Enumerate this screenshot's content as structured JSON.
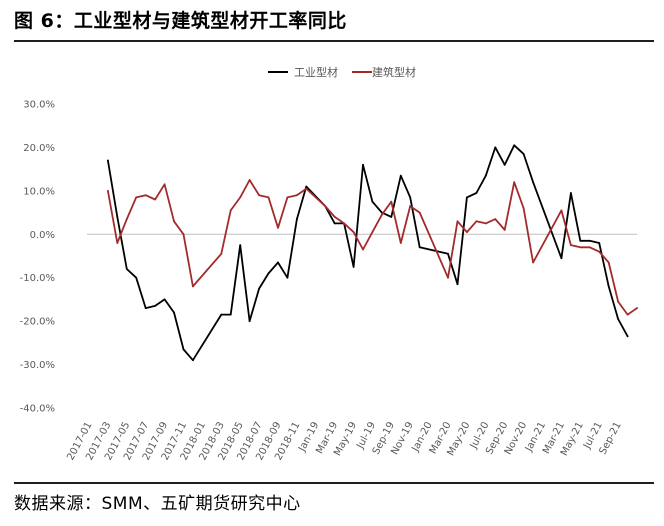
{
  "figure": {
    "title": "图 6：工业型材与建筑型材开工率同比",
    "source": "数据来源：SMM、五矿期货研究中心"
  },
  "colors": {
    "series_black": "#000000",
    "series_red": "#a32b2b",
    "zero_line": "#bfbfbf",
    "tick_text": "#595959",
    "rule": "#1f1f1f"
  },
  "chart_data": {
    "type": "line",
    "title": "",
    "xlabel": "",
    "ylabel": "",
    "ylim": [
      -40,
      30
    ],
    "y_ticks": [
      30,
      20,
      10,
      0,
      -10,
      -20,
      -30,
      -40
    ],
    "y_tick_labels": [
      "30.0%",
      "20.0%",
      "10.0%",
      "0.0%",
      "-10.0%",
      "-20.0%",
      "-30.0%",
      "-40.0%"
    ],
    "grid": false,
    "legend_position": "top-center",
    "x_tick_labels": [
      "2017-01",
      "2017-03",
      "2017-05",
      "2017-07",
      "2017-09",
      "2017-11",
      "2018-01",
      "2018-03",
      "2018-05",
      "2018-07",
      "2018-09",
      "2018-11",
      "Jan-19",
      "Mar-19",
      "May-19",
      "Jul-19",
      "Sep-19",
      "Nov-19",
      "Jan-20",
      "Mar-20",
      "May-20",
      "Jul-20",
      "Sep-20",
      "Nov-20",
      "Jan-21",
      "Mar-21",
      "May-21",
      "Jul-21",
      "Sep-21"
    ],
    "series": [
      {
        "name": "工业型材",
        "color": "#000000",
        "points": [
          [
            "2017-03",
            17.0
          ],
          [
            "2017-04",
            4.0
          ],
          [
            "2017-05",
            -8.0
          ],
          [
            "2017-06",
            -10.0
          ],
          [
            "2017-07",
            -17.0
          ],
          [
            "2017-08",
            -16.5
          ],
          [
            "2017-09",
            -15.0
          ],
          [
            "2017-10",
            -18.0
          ],
          [
            "2017-11",
            -26.5
          ],
          [
            "2017-12",
            -29.0
          ],
          [
            "2018-03",
            -18.5
          ],
          [
            "2018-04",
            -18.5
          ],
          [
            "2018-05",
            -2.5
          ],
          [
            "2018-06",
            -20.0
          ],
          [
            "2018-07",
            -12.5
          ],
          [
            "2018-08",
            -9.0
          ],
          [
            "2018-09",
            -6.5
          ],
          [
            "2018-10",
            -10.0
          ],
          [
            "2018-11",
            3.5
          ],
          [
            "2018-12",
            11.0
          ],
          [
            "Feb-19",
            6.5
          ],
          [
            "Mar-19",
            2.5
          ],
          [
            "Apr-19",
            2.5
          ],
          [
            "May-19",
            -7.5
          ],
          [
            "Jun-19",
            16.0
          ],
          [
            "Jul-19",
            7.5
          ],
          [
            "Aug-19",
            5.0
          ],
          [
            "Sep-19",
            4.0
          ],
          [
            "Oct-19",
            13.5
          ],
          [
            "Nov-19",
            8.5
          ],
          [
            "Dec-19",
            -3.0
          ],
          [
            "Mar-20",
            -4.5
          ],
          [
            "Apr-20",
            -11.5
          ],
          [
            "May-20",
            8.5
          ],
          [
            "Jun-20",
            9.5
          ],
          [
            "Jul-20",
            13.5
          ],
          [
            "Aug-20",
            20.0
          ],
          [
            "Sep-20",
            16.0
          ],
          [
            "Oct-20",
            20.5
          ],
          [
            "Nov-20",
            18.5
          ],
          [
            "Dec-20",
            12.0
          ],
          [
            "Mar-21",
            -5.5
          ],
          [
            "Apr-21",
            9.5
          ],
          [
            "May-21",
            -1.5
          ],
          [
            "Jun-21",
            -1.5
          ],
          [
            "Jul-21",
            -2.0
          ],
          [
            "Aug-21",
            -12.0
          ],
          [
            "Sep-21",
            -19.5
          ],
          [
            "Oct-21",
            -23.5
          ]
        ]
      },
      {
        "name": "建筑型材",
        "color": "#a32b2b",
        "points": [
          [
            "2017-03",
            10.0
          ],
          [
            "2017-04",
            -2.0
          ],
          [
            "2017-05",
            3.5
          ],
          [
            "2017-06",
            8.5
          ],
          [
            "2017-07",
            9.0
          ],
          [
            "2017-08",
            8.0
          ],
          [
            "2017-09",
            11.5
          ],
          [
            "2017-10",
            3.0
          ],
          [
            "2017-11",
            0.0
          ],
          [
            "2017-12",
            -12.0
          ],
          [
            "2018-03",
            -4.5
          ],
          [
            "2018-04",
            5.5
          ],
          [
            "2018-05",
            8.5
          ],
          [
            "2018-06",
            12.5
          ],
          [
            "2018-07",
            9.0
          ],
          [
            "2018-08",
            8.5
          ],
          [
            "2018-09",
            1.5
          ],
          [
            "2018-10",
            8.5
          ],
          [
            "2018-11",
            9.0
          ],
          [
            "2018-12",
            10.5
          ],
          [
            "Feb-19",
            6.5
          ],
          [
            "Mar-19",
            4.0
          ],
          [
            "Apr-19",
            2.5
          ],
          [
            "May-19",
            0.5
          ],
          [
            "Jun-19",
            -3.5
          ],
          [
            "Jul-19",
            0.5
          ],
          [
            "Aug-19",
            4.5
          ],
          [
            "Sep-19",
            7.5
          ],
          [
            "Oct-19",
            -2.0
          ],
          [
            "Nov-19",
            6.5
          ],
          [
            "Dec-19",
            5.0
          ],
          [
            "Mar-20",
            -10.0
          ],
          [
            "Apr-20",
            3.0
          ],
          [
            "May-20",
            0.5
          ],
          [
            "Jun-20",
            3.0
          ],
          [
            "Jul-20",
            2.5
          ],
          [
            "Aug-20",
            3.5
          ],
          [
            "Sep-20",
            1.0
          ],
          [
            "Oct-20",
            12.0
          ],
          [
            "Nov-20",
            6.0
          ],
          [
            "Dec-20",
            -6.5
          ],
          [
            "Mar-21",
            5.5
          ],
          [
            "Apr-21",
            -2.5
          ],
          [
            "May-21",
            -3.0
          ],
          [
            "Jun-21",
            -3.0
          ],
          [
            "Jul-21",
            -4.0
          ],
          [
            "Aug-21",
            -6.5
          ],
          [
            "Sep-21",
            -15.5
          ],
          [
            "Oct-21",
            -18.5
          ],
          [
            "Nov-21",
            -17.0
          ]
        ]
      }
    ]
  }
}
